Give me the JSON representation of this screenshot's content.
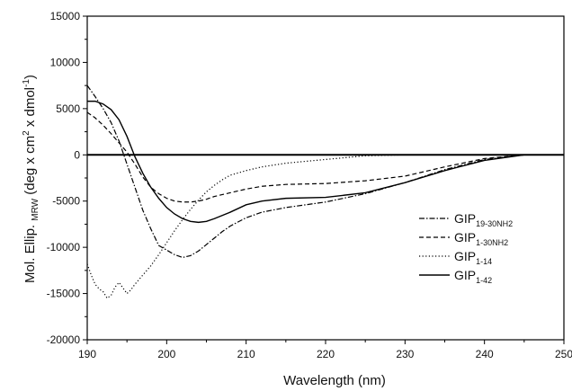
{
  "chart_data": {
    "type": "line",
    "title": "",
    "xlabel": "Wavelength (nm)",
    "ylabel_parts": {
      "main": "Mol. Ellip.",
      "sub": "MRW",
      "unit_a": " (deg x cm",
      "sup1": "2",
      "unit_b": " x dmol",
      "sup2": "-1",
      "unit_c": ")"
    },
    "xlim": [
      190,
      250
    ],
    "ylim": [
      -20000,
      15000
    ],
    "xticks": [
      "190",
      "200",
      "210",
      "220",
      "230",
      "240",
      "250"
    ],
    "yticks": [
      "-20000",
      "-15000",
      "-10000",
      "-5000",
      "0",
      "5000",
      "10000",
      "15000"
    ],
    "grid": false,
    "legend_position": "center-right",
    "series": [
      {
        "name_main": "GIP",
        "name_sub": "19-30NH2",
        "style": "dashdot",
        "points": [
          [
            190,
            7500
          ],
          [
            191,
            6300
          ],
          [
            192,
            5000
          ],
          [
            193,
            3500
          ],
          [
            194,
            1500
          ],
          [
            195,
            -1000
          ],
          [
            196,
            -3500
          ],
          [
            197,
            -6000
          ],
          [
            198,
            -8000
          ],
          [
            199,
            -9800
          ],
          [
            200,
            -10300
          ],
          [
            201,
            -10800
          ],
          [
            202,
            -11100
          ],
          [
            203,
            -10900
          ],
          [
            204,
            -10400
          ],
          [
            205,
            -9700
          ],
          [
            206,
            -9000
          ],
          [
            207,
            -8300
          ],
          [
            208,
            -7700
          ],
          [
            210,
            -6800
          ],
          [
            212,
            -6200
          ],
          [
            215,
            -5700
          ],
          [
            220,
            -5100
          ],
          [
            225,
            -4200
          ],
          [
            230,
            -3000
          ],
          [
            235,
            -1600
          ],
          [
            240,
            -500
          ],
          [
            245,
            0
          ],
          [
            250,
            0
          ]
        ]
      },
      {
        "name_main": "GIP",
        "name_sub": "1-30NH2",
        "style": "dashed",
        "points": [
          [
            190,
            4600
          ],
          [
            191,
            4000
          ],
          [
            192,
            3200
          ],
          [
            193,
            2300
          ],
          [
            194,
            1300
          ],
          [
            195,
            300
          ],
          [
            196,
            -1000
          ],
          [
            197,
            -2400
          ],
          [
            198,
            -3500
          ],
          [
            199,
            -4200
          ],
          [
            200,
            -4700
          ],
          [
            201,
            -5000
          ],
          [
            202,
            -5100
          ],
          [
            203,
            -5100
          ],
          [
            204,
            -5000
          ],
          [
            205,
            -4800
          ],
          [
            206,
            -4500
          ],
          [
            208,
            -4100
          ],
          [
            210,
            -3700
          ],
          [
            212,
            -3400
          ],
          [
            215,
            -3200
          ],
          [
            220,
            -3100
          ],
          [
            225,
            -2800
          ],
          [
            230,
            -2300
          ],
          [
            235,
            -1300
          ],
          [
            240,
            -400
          ],
          [
            245,
            0
          ],
          [
            250,
            0
          ]
        ]
      },
      {
        "name_main": "GIP",
        "name_sub": "1-14",
        "style": "dotted",
        "points": [
          [
            190,
            -11800
          ],
          [
            190.5,
            -13000
          ],
          [
            191,
            -14000
          ],
          [
            191.5,
            -14500
          ],
          [
            192,
            -14800
          ],
          [
            192.5,
            -15500
          ],
          [
            193,
            -15200
          ],
          [
            193.5,
            -14300
          ],
          [
            194,
            -13800
          ],
          [
            194.5,
            -14400
          ],
          [
            195,
            -15000
          ],
          [
            195.5,
            -14600
          ],
          [
            196,
            -14000
          ],
          [
            197,
            -13000
          ],
          [
            198,
            -12000
          ],
          [
            199,
            -10800
          ],
          [
            200,
            -9500
          ],
          [
            201,
            -8200
          ],
          [
            202,
            -7000
          ],
          [
            203,
            -5900
          ],
          [
            204,
            -4900
          ],
          [
            205,
            -4000
          ],
          [
            206,
            -3300
          ],
          [
            207,
            -2700
          ],
          [
            208,
            -2200
          ],
          [
            210,
            -1700
          ],
          [
            212,
            -1300
          ],
          [
            215,
            -900
          ],
          [
            220,
            -500
          ],
          [
            225,
            -100
          ],
          [
            230,
            0
          ],
          [
            240,
            0
          ],
          [
            250,
            0
          ]
        ]
      },
      {
        "name_main": "GIP",
        "name_sub": "1-42",
        "style": "solid",
        "points": [
          [
            190,
            5800
          ],
          [
            191,
            5800
          ],
          [
            192,
            5500
          ],
          [
            193,
            4900
          ],
          [
            194,
            3800
          ],
          [
            195,
            2000
          ],
          [
            196,
            -200
          ],
          [
            197,
            -2000
          ],
          [
            198,
            -3500
          ],
          [
            199,
            -4700
          ],
          [
            200,
            -5700
          ],
          [
            201,
            -6400
          ],
          [
            202,
            -6900
          ],
          [
            203,
            -7200
          ],
          [
            204,
            -7300
          ],
          [
            205,
            -7200
          ],
          [
            206,
            -6900
          ],
          [
            208,
            -6200
          ],
          [
            210,
            -5400
          ],
          [
            212,
            -5000
          ],
          [
            215,
            -4700
          ],
          [
            220,
            -4600
          ],
          [
            225,
            -4100
          ],
          [
            230,
            -3000
          ],
          [
            235,
            -1700
          ],
          [
            240,
            -600
          ],
          [
            245,
            0
          ],
          [
            250,
            0
          ]
        ]
      }
    ]
  }
}
